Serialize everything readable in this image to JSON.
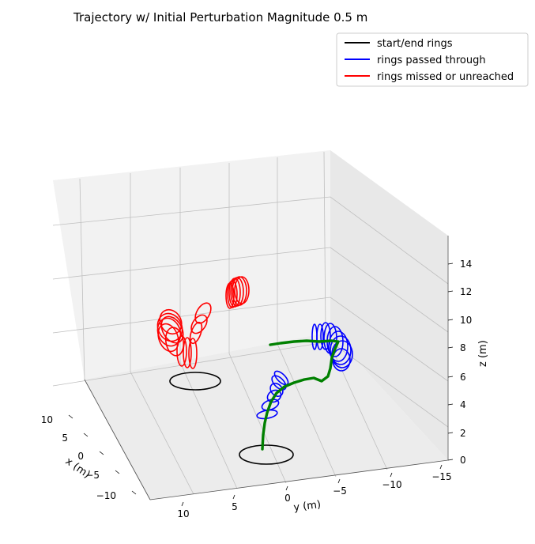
{
  "chart_data": {
    "type": "line3d",
    "title": "Trajectory w/ Initial Perturbation Magnitude 0.5 m",
    "xlabel": "x (m)",
    "ylabel": "y (m)",
    "zlabel": "z (m)",
    "xlim": [
      -12,
      12
    ],
    "ylim": [
      -16,
      13
    ],
    "zlim": [
      0,
      15
    ],
    "x_ticks": [
      "10",
      "5",
      "0",
      "−5",
      "−10"
    ],
    "y_ticks": [
      "10",
      "5",
      "0",
      "−5",
      "−10",
      "−15"
    ],
    "z_ticks": [
      "0",
      "2",
      "4",
      "6",
      "8",
      "10",
      "12",
      "14"
    ],
    "grid": true,
    "legend_position": "top-right",
    "legend": [
      {
        "label": "start/end rings",
        "color": "#000000"
      },
      {
        "label": "rings passed through",
        "color": "#0000ff"
      },
      {
        "label": "rings missed or unreached",
        "color": "#ff0000"
      }
    ],
    "colors": {
      "start_end": "#000000",
      "passed": "#0000ff",
      "missed": "#ff0000",
      "trajectory": "#008000"
    },
    "rings": {
      "start_end": [
        {
          "x": 0,
          "y": 0,
          "z": 0
        },
        {
          "x": 3,
          "y": 5,
          "z": 0
        }
      ],
      "passed": [
        {
          "x": 2,
          "y": 1,
          "z": 2.5
        },
        {
          "x": 2.4,
          "y": 0.2,
          "z": 3.2
        },
        {
          "x": 2.8,
          "y": -0.5,
          "z": 4.0
        },
        {
          "x": 3.2,
          "y": -1.2,
          "z": 4.8
        },
        {
          "x": 3.6,
          "y": -2.0,
          "z": 5.5
        },
        {
          "x": 4.0,
          "y": -2.8,
          "z": 6.2
        },
        {
          "x": 4.4,
          "y": -3.5,
          "z": 7.0
        },
        {
          "x": -8,
          "y": 2,
          "z": 8
        },
        {
          "x": -9,
          "y": 3,
          "z": 8
        },
        {
          "x": -10,
          "y": 3,
          "z": 8
        },
        {
          "x": -10,
          "y": 4,
          "z": 8
        },
        {
          "x": -10,
          "y": 5,
          "z": 8
        },
        {
          "x": -9,
          "y": 6,
          "z": 8
        },
        {
          "x": -8,
          "y": 6,
          "z": 8
        },
        {
          "x": -7,
          "y": 5,
          "z": 8
        }
      ],
      "missed": [
        {
          "x": 4.2,
          "y": 5.0,
          "z": 6.5
        },
        {
          "x": 4.4,
          "y": 5.3,
          "z": 7.0
        },
        {
          "x": 4.6,
          "y": 5.5,
          "z": 7.5
        },
        {
          "x": 4.8,
          "y": 5.8,
          "z": 8.0
        },
        {
          "x": 5.0,
          "y": 6.0,
          "z": 8.5
        },
        {
          "x": 5.2,
          "y": 6.3,
          "z": 9.0
        },
        {
          "x": 5.4,
          "y": 6.5,
          "z": 9.5
        },
        {
          "x": 5.6,
          "y": 6.6,
          "z": 10.0
        },
        {
          "x": 5.8,
          "y": 6.4,
          "z": 10.5
        },
        {
          "x": 6.0,
          "y": 6.0,
          "z": 11.0
        },
        {
          "x": 6.2,
          "y": 5.5,
          "z": 11.5
        },
        {
          "x": 6.4,
          "y": 5.0,
          "z": 12.0
        },
        {
          "x": 3.0,
          "y": 4.0,
          "z": 12.0
        },
        {
          "x": 2.8,
          "y": 3.8,
          "z": 12.2
        },
        {
          "x": 2.6,
          "y": 3.6,
          "z": 12.4
        },
        {
          "x": 2.4,
          "y": 3.4,
          "z": 12.5
        },
        {
          "x": 2.2,
          "y": 3.2,
          "z": 12.6
        },
        {
          "x": 2.0,
          "y": 3.0,
          "z": 12.6
        }
      ]
    },
    "trajectory": {
      "x": [
        0.0,
        0.5,
        1.0,
        1.5,
        2.0,
        2.5,
        3.0,
        3.5,
        4.0,
        4.5,
        5.0,
        5.5,
        6.0,
        6.5,
        7.0
      ],
      "y": [
        0.0,
        0.3,
        0.6,
        0.8,
        0.9,
        0.8,
        0.5,
        0.0,
        -0.6,
        -1.3,
        -2.0,
        -2.8,
        -3.6,
        -4.4,
        -5.2
      ],
      "z": [
        0.0,
        0.8,
        1.6,
        2.3,
        3.0,
        3.6,
        4.2,
        4.8,
        5.3,
        5.7,
        6.0,
        6.2,
        6.3,
        6.3,
        6.2
      ]
    }
  }
}
